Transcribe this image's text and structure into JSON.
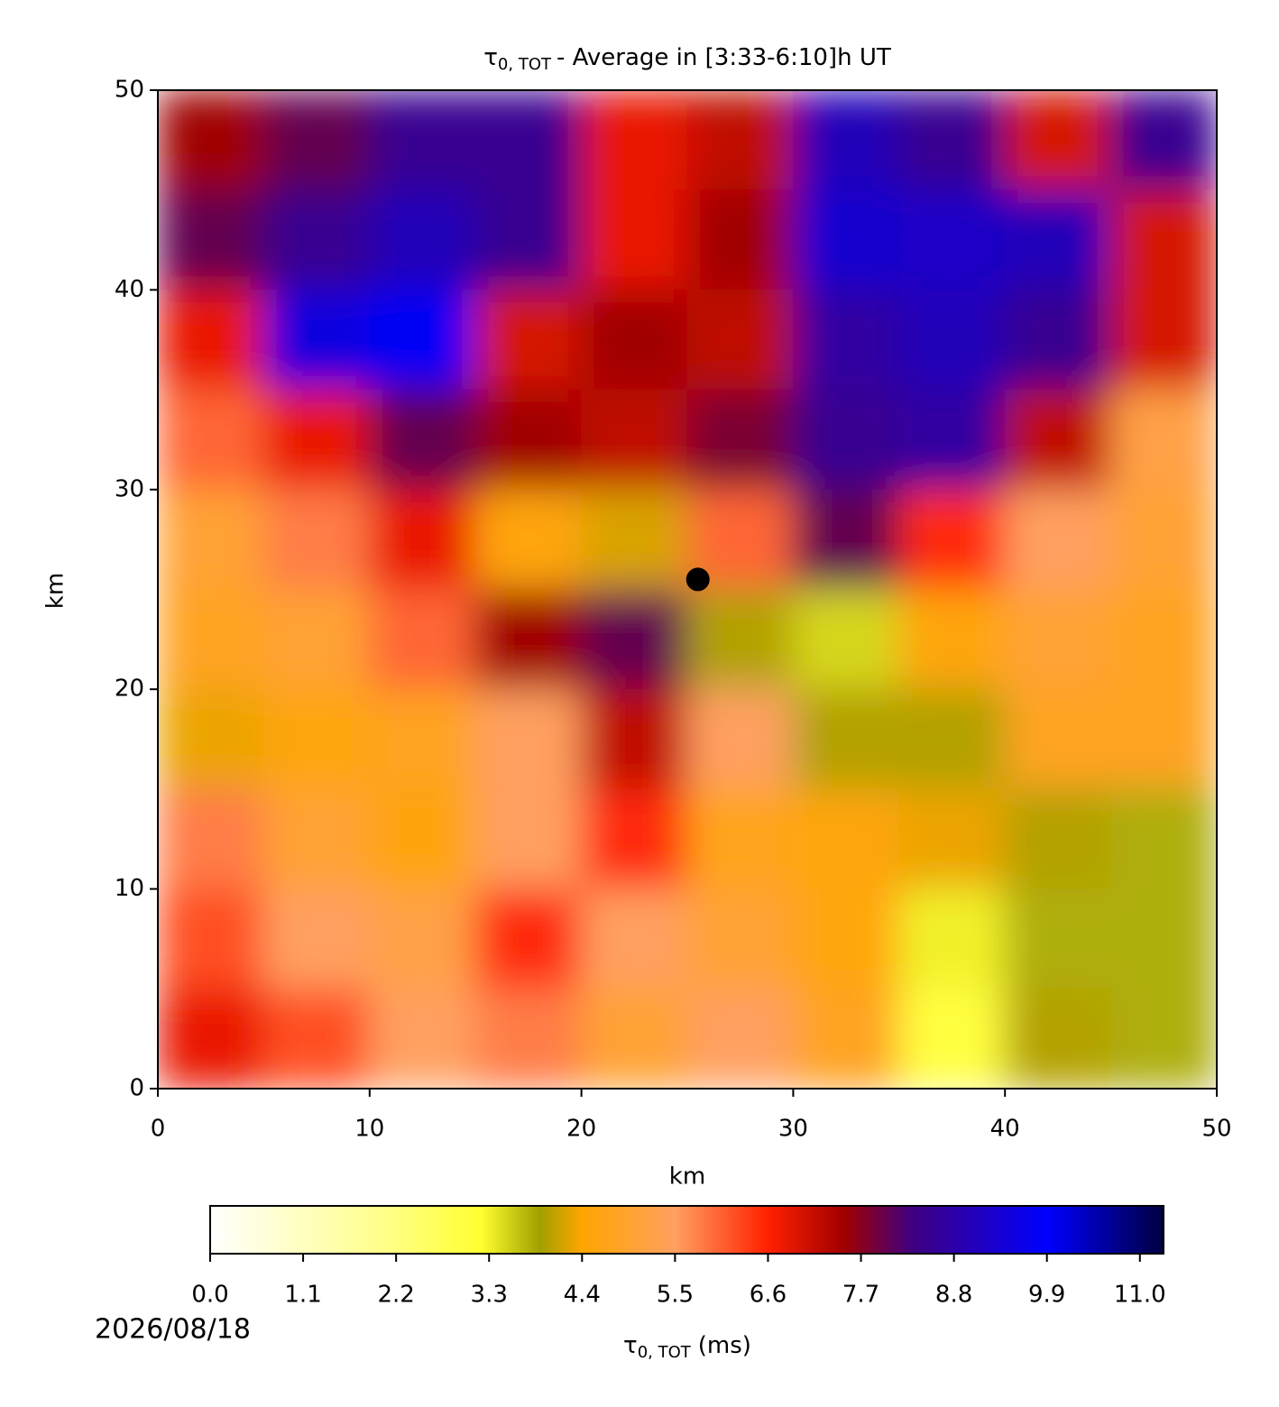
{
  "chart_data": {
    "type": "heatmap",
    "title": {
      "symbol": "τ",
      "subscript": "0, TOT",
      "text": "- Average in [3:33-6:10]h UT"
    },
    "x_label": "km",
    "y_label": "km",
    "x": [
      2.5,
      7.5,
      12.5,
      17.5,
      22.5,
      27.5,
      32.5,
      37.5,
      42.5,
      47.5
    ],
    "y": [
      47.5,
      42.5,
      37.5,
      32.5,
      27.5,
      22.5,
      17.5,
      12.5,
      7.5,
      2.5
    ],
    "z": [
      [
        7.5,
        8.0,
        8.5,
        8.5,
        6.8,
        7.2,
        9.0,
        8.5,
        7.0,
        8.5
      ],
      [
        8.0,
        8.5,
        9.0,
        8.5,
        6.8,
        7.5,
        9.3,
        9.2,
        9.0,
        7.0
      ],
      [
        6.8,
        9.5,
        9.8,
        7.0,
        7.5,
        7.2,
        8.7,
        9.0,
        8.5,
        7.0
      ],
      [
        6.0,
        6.8,
        8.0,
        7.5,
        7.2,
        7.8,
        8.5,
        8.7,
        7.2,
        5.2
      ],
      [
        5.0,
        5.8,
        6.8,
        4.5,
        4.2,
        6.0,
        8.0,
        6.5,
        5.5,
        5.0
      ],
      [
        4.8,
        5.0,
        6.0,
        7.5,
        8.0,
        4.0,
        3.5,
        4.5,
        5.0,
        4.8
      ],
      [
        4.3,
        4.5,
        4.8,
        5.5,
        7.2,
        5.5,
        4.0,
        4.0,
        4.8,
        4.8
      ],
      [
        5.8,
        5.0,
        4.6,
        5.5,
        6.5,
        4.7,
        4.5,
        4.3,
        4.0,
        3.8
      ],
      [
        6.2,
        5.5,
        5.2,
        6.5,
        5.5,
        5.0,
        4.5,
        3.3,
        3.8,
        3.8
      ],
      [
        6.8,
        6.2,
        5.5,
        5.8,
        5.0,
        5.5,
        4.8,
        3.0,
        4.0,
        3.8
      ]
    ],
    "xlim": [
      0,
      50
    ],
    "ylim": [
      0,
      50
    ],
    "xticks": [
      0,
      10,
      20,
      30,
      40,
      50
    ],
    "yticks": [
      0,
      10,
      20,
      30,
      40,
      50
    ],
    "marker": {
      "x": 25.5,
      "y": 25.5,
      "color": "#000000"
    },
    "colormap": [
      [
        0,
        "#ffffff"
      ],
      [
        2.2,
        "#ffff80"
      ],
      [
        3.2,
        "#ffff30"
      ],
      [
        3.9,
        "#a0a000"
      ],
      [
        4.4,
        "#ffa500"
      ],
      [
        5.5,
        "#ffa060"
      ],
      [
        6.6,
        "#ff2000"
      ],
      [
        7.5,
        "#a00000"
      ],
      [
        8.3,
        "#400080"
      ],
      [
        9.9,
        "#0000ff"
      ],
      [
        11.28,
        "#000040"
      ]
    ],
    "clim": [
      0,
      11.28
    ],
    "cticks": [
      {
        "value": 0,
        "label": "0.0"
      },
      1.1,
      2.2,
      3.3,
      4.4,
      5.5,
      6.6,
      7.7,
      8.8,
      9.9,
      {
        "value": 11,
        "label": "11.0"
      }
    ],
    "colorbar_label": {
      "symbol": "τ",
      "subscript": "0, TOT",
      "text": "(ms)"
    },
    "date": "2026/08/18"
  }
}
